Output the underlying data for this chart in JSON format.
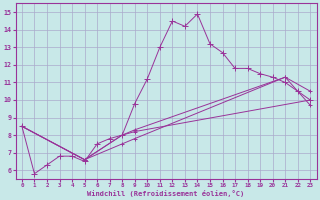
{
  "background_color": "#c8e8e8",
  "grid_color": "#aaaacc",
  "line_color": "#993399",
  "xlabel": "Windchill (Refroidissement éolien,°C)",
  "xlim": [
    -0.5,
    23.5
  ],
  "ylim": [
    5.5,
    15.5
  ],
  "xticks": [
    0,
    1,
    2,
    3,
    4,
    5,
    6,
    7,
    8,
    9,
    10,
    11,
    12,
    13,
    14,
    15,
    16,
    17,
    18,
    19,
    20,
    21,
    22,
    23
  ],
  "yticks": [
    6,
    7,
    8,
    9,
    10,
    11,
    12,
    13,
    14,
    15
  ],
  "line1_x": [
    0,
    1,
    2,
    3,
    4,
    5,
    6,
    7,
    8,
    9,
    10,
    11,
    12,
    13,
    14,
    15,
    16,
    17,
    18,
    19,
    20,
    21,
    22,
    23
  ],
  "line1_y": [
    8.5,
    5.8,
    6.3,
    6.8,
    6.8,
    6.5,
    7.5,
    7.8,
    8.0,
    9.8,
    11.2,
    13.0,
    14.5,
    14.2,
    14.9,
    13.2,
    12.7,
    11.8,
    11.8,
    11.5,
    11.3,
    11.0,
    10.5,
    10.0
  ],
  "line2_x": [
    0,
    5,
    8,
    9,
    23
  ],
  "line2_y": [
    8.5,
    6.6,
    8.0,
    8.2,
    10.0
  ],
  "line3_x": [
    0,
    5,
    8,
    9,
    21,
    23
  ],
  "line3_y": [
    8.5,
    6.6,
    7.5,
    7.8,
    11.3,
    10.5
  ],
  "line4_x": [
    0,
    5,
    8,
    9,
    21,
    23
  ],
  "line4_y": [
    8.5,
    6.6,
    8.0,
    8.3,
    11.3,
    9.7
  ]
}
